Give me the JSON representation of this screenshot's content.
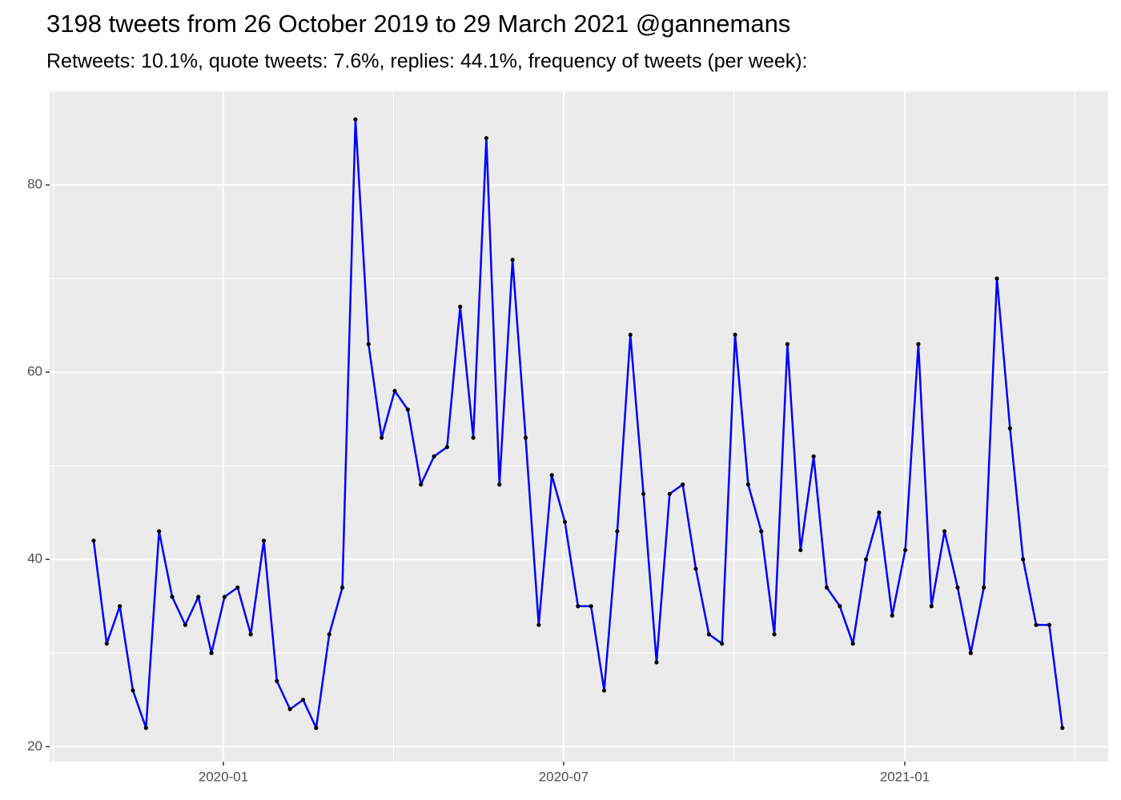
{
  "chart_data": {
    "type": "line",
    "title": "3198 tweets from 26 October 2019 to 29 March 2021 @gannemans",
    "subtitle": "Retweets: 10.1%, quote tweets: 7.6%, replies: 44.1%, frequency of tweets (per week):",
    "x": [
      0,
      1,
      2,
      3,
      4,
      5,
      6,
      7,
      8,
      9,
      10,
      11,
      12,
      13,
      14,
      15,
      16,
      17,
      18,
      19,
      20,
      21,
      22,
      23,
      24,
      25,
      26,
      27,
      28,
      29,
      30,
      31,
      32,
      33,
      34,
      35,
      36,
      37,
      38,
      39,
      40,
      41,
      42,
      43,
      44,
      45,
      46,
      47,
      48,
      49,
      50,
      51,
      52,
      53,
      54,
      55,
      56,
      57,
      58,
      59,
      60,
      61,
      62,
      63,
      64,
      65,
      66,
      67,
      68,
      69,
      70,
      71,
      72,
      73,
      74
    ],
    "series": [
      {
        "color": "#0000ff",
        "point_color": "#000000",
        "values": [
          42,
          31,
          35,
          26,
          22,
          43,
          36,
          33,
          36,
          30,
          36,
          37,
          32,
          42,
          27,
          24,
          25,
          22,
          32,
          37,
          87,
          63,
          53,
          58,
          56,
          48,
          51,
          52,
          67,
          53,
          85,
          48,
          72,
          53,
          33,
          49,
          44,
          35,
          35,
          26,
          43,
          64,
          47,
          29,
          47,
          48,
          39,
          32,
          31,
          64,
          48,
          43,
          32,
          63,
          41,
          51,
          37,
          35,
          31,
          40,
          45,
          34,
          41,
          63,
          35,
          43,
          37,
          30,
          37,
          70,
          54,
          40,
          33,
          33,
          22
        ]
      }
    ],
    "xlim": [
      -3.36,
      77.5
    ],
    "xticks": [
      {
        "value": 9.91,
        "label": "2020-01"
      },
      {
        "value": 35.9,
        "label": "2020-07"
      },
      {
        "value": 61.96,
        "label": "2021-01"
      }
    ],
    "ylim": [
      18.4,
      90.1
    ],
    "yticks": [
      20,
      40,
      60,
      80
    ],
    "grid": true
  }
}
